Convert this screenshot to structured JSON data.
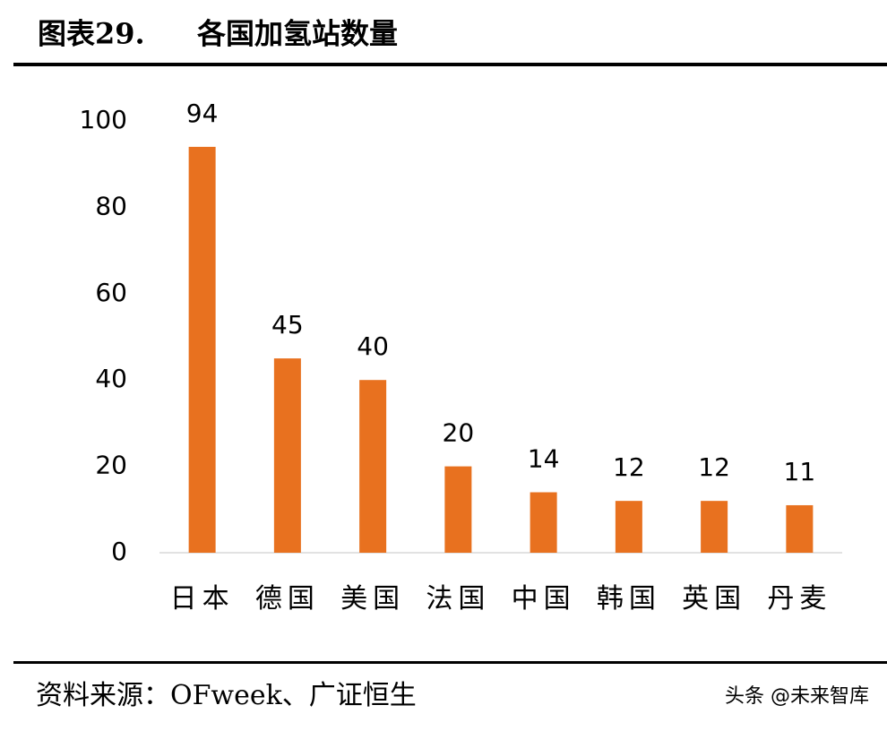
{
  "chart_data": {
    "type": "bar",
    "figure_label": "图表29.",
    "title": "各国加氢站数量",
    "categories": [
      "日本",
      "德国",
      "美国",
      "法国",
      "中国",
      "韩国",
      "英国",
      "丹麦"
    ],
    "values": [
      94,
      45,
      40,
      20,
      14,
      12,
      12,
      11
    ],
    "color": "#e8711f",
    "ylim": [
      0,
      100
    ],
    "yticks": [
      0,
      20,
      40,
      60,
      80,
      100
    ],
    "grid": false,
    "source": "资料来源：OFweek、广证恒生",
    "watermark": "头条 @未来智库"
  }
}
